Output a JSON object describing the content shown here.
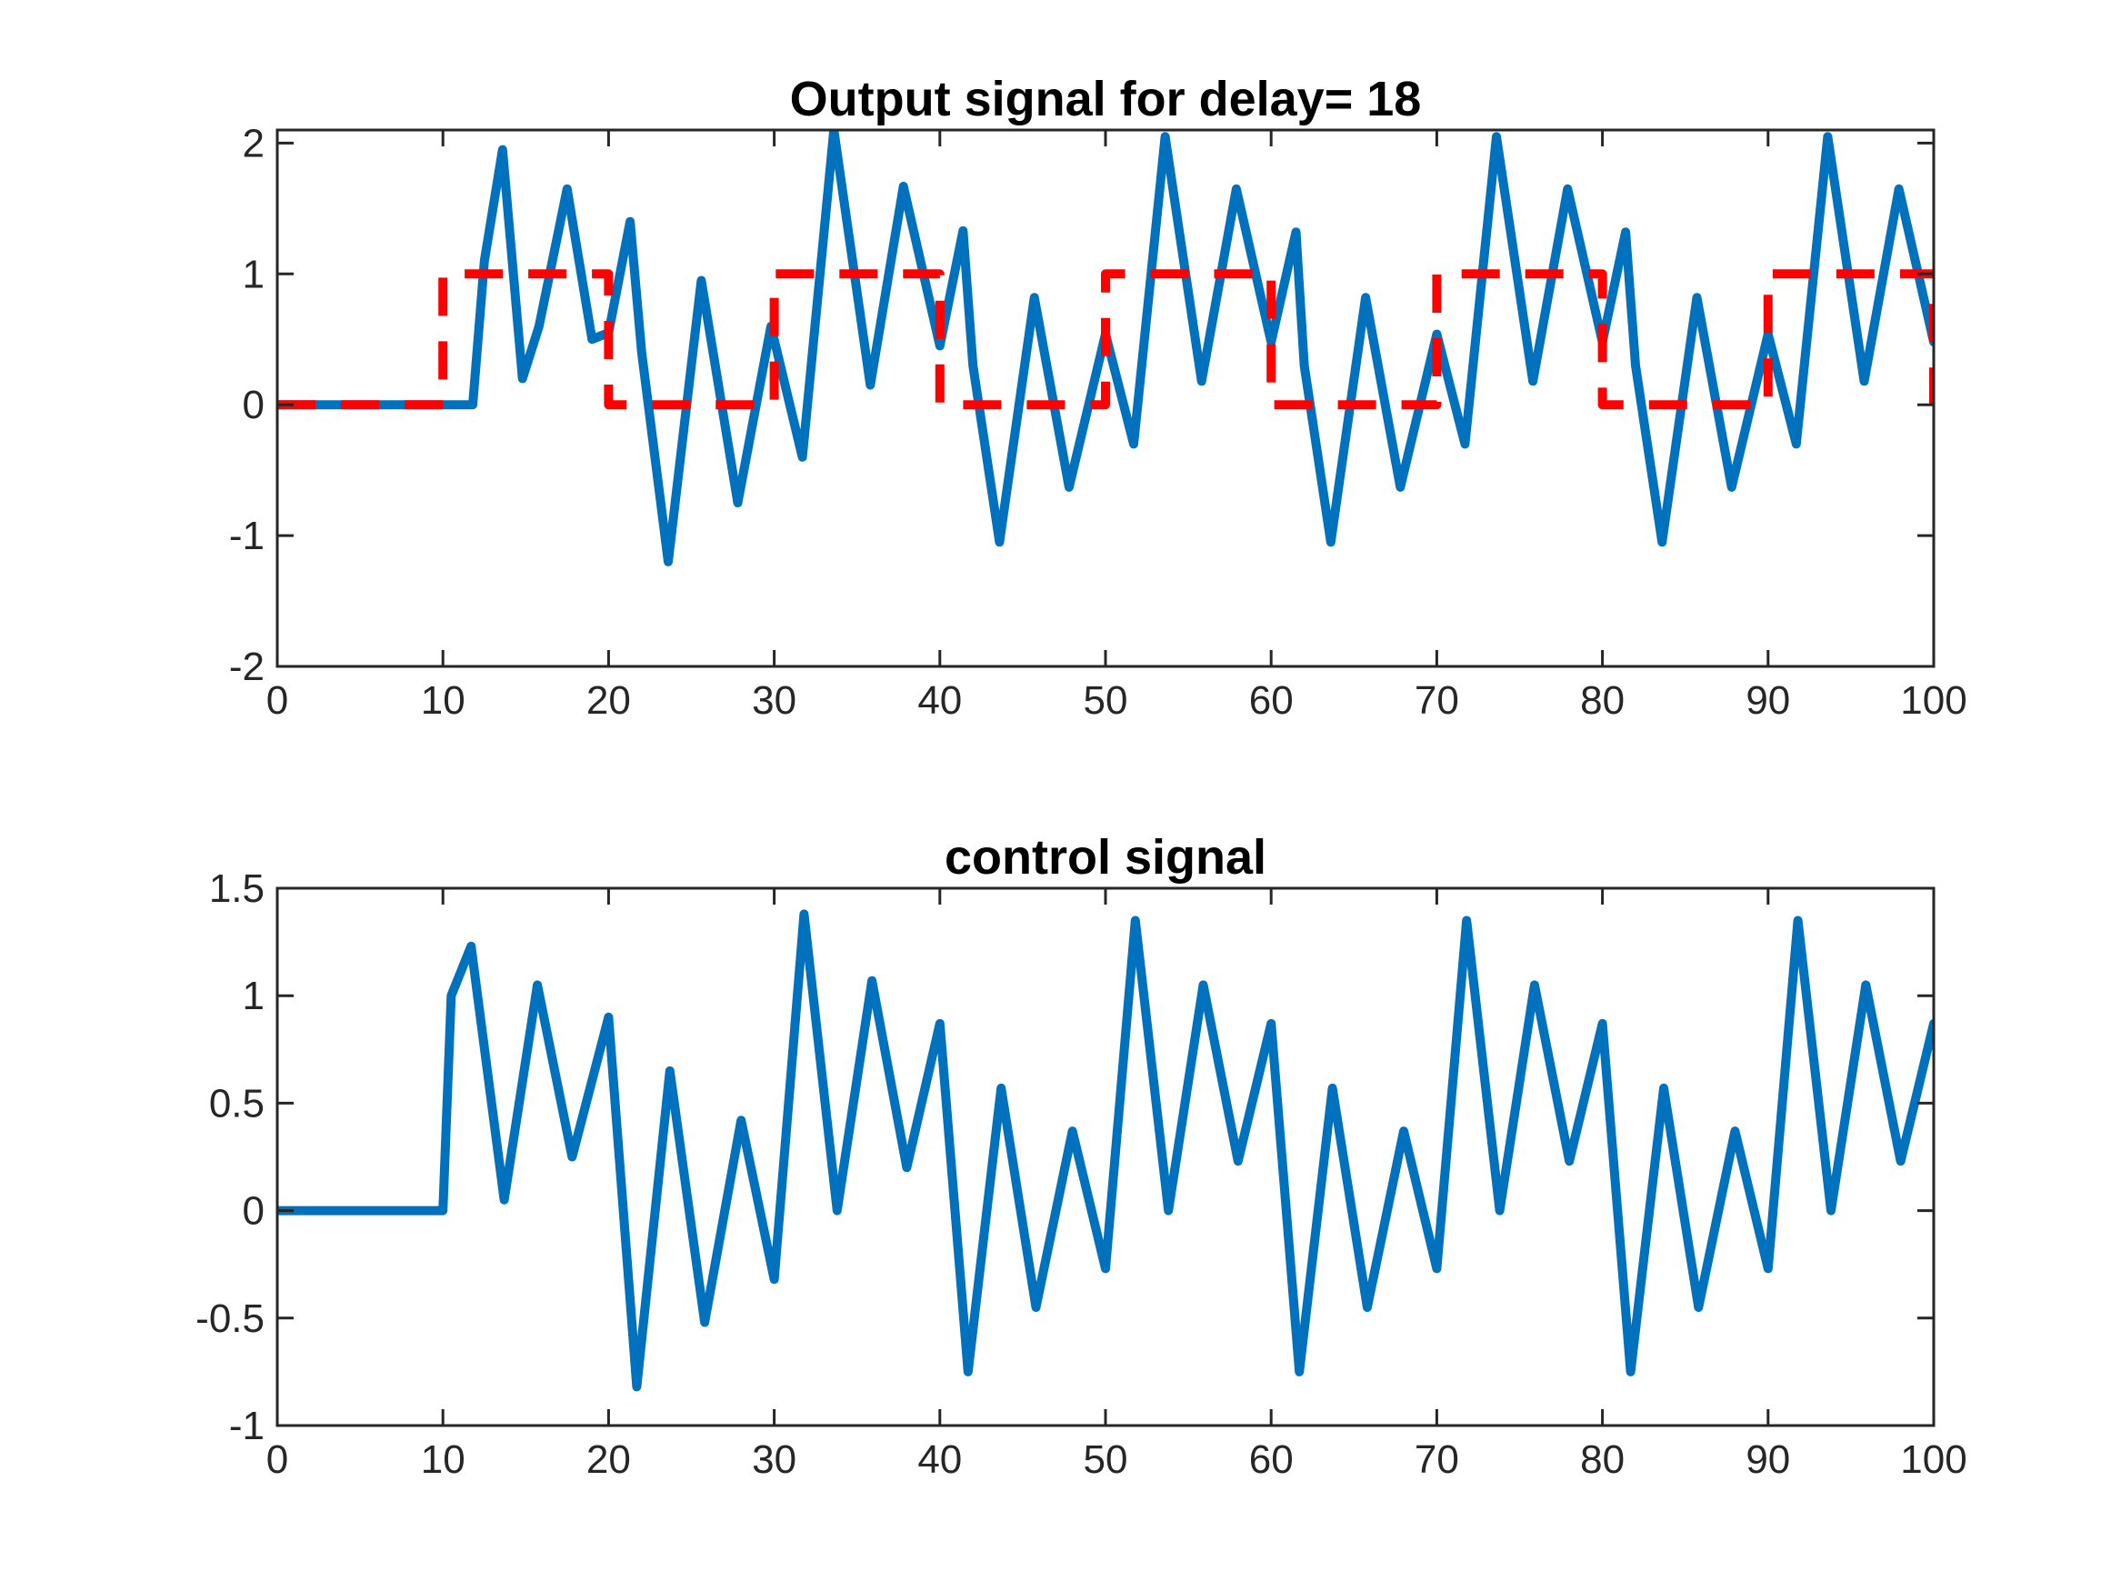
{
  "colors": {
    "output": "#0072BD",
    "reference": "#FF0000",
    "axis": "#262626"
  },
  "chart_data": [
    {
      "type": "line",
      "title": "Output signal for delay= 18",
      "xlabel": "",
      "ylabel": "",
      "xlim": [
        0,
        100
      ],
      "ylim": [
        -2,
        2.1
      ],
      "xticks": [
        0,
        10,
        20,
        30,
        40,
        50,
        60,
        70,
        80,
        90,
        100
      ],
      "yticks": [
        -2,
        -1,
        0,
        1,
        2
      ],
      "xtick_labels": [
        "0",
        "10",
        "20",
        "30",
        "40",
        "50",
        "60",
        "70",
        "80",
        "90",
        "100"
      ],
      "ytick_labels": [
        "-2",
        "-1",
        "0",
        "1",
        "2"
      ],
      "grid": false,
      "legend": null,
      "series": [
        {
          "style": "solid",
          "color": "#0072BD",
          "x": [
            0,
            11.8,
            12.5,
            13.6,
            14.8,
            15.8,
            17.5,
            19.0,
            20.0,
            21.3,
            22.0,
            23.6,
            25.6,
            27.8,
            29.8,
            31.7,
            33.6,
            35.8,
            37.8,
            40.0,
            41.4,
            42.0,
            43.6,
            45.7,
            47.8,
            50.0,
            51.7,
            53.6,
            55.8,
            57.9,
            60.0,
            61.5,
            62.0,
            63.6,
            65.7,
            67.8,
            70.0,
            71.7,
            73.6,
            75.8,
            77.9,
            80.0,
            81.4,
            82.0,
            83.6,
            85.7,
            87.8,
            90.0,
            91.7,
            93.6,
            95.8,
            97.9,
            100
          ],
          "y": [
            0,
            0,
            1.1,
            1.95,
            0.2,
            0.6,
            1.65,
            0.5,
            0.55,
            1.4,
            0.4,
            -1.2,
            0.95,
            -0.75,
            0.6,
            -0.4,
            2.1,
            0.15,
            1.67,
            0.45,
            1.33,
            0.3,
            -1.05,
            0.82,
            -0.63,
            0.54,
            -0.3,
            2.05,
            0.18,
            1.65,
            0.48,
            1.32,
            0.3,
            -1.05,
            0.82,
            -0.63,
            0.54,
            -0.3,
            2.05,
            0.18,
            1.65,
            0.48,
            1.32,
            0.3,
            -1.05,
            0.82,
            -0.63,
            0.54,
            -0.3,
            2.05,
            0.18,
            1.65,
            0.48
          ]
        },
        {
          "style": "dashed",
          "color": "#FF0000",
          "x": [
            0,
            10,
            10,
            20,
            20,
            30,
            30,
            40,
            40,
            50,
            50,
            60,
            60,
            70,
            70,
            80,
            80,
            90,
            90,
            100,
            100
          ],
          "y": [
            0,
            0,
            1,
            1,
            0,
            0,
            1,
            1,
            0,
            0,
            1,
            1,
            0,
            0,
            1,
            1,
            0,
            0,
            1,
            1,
            0
          ]
        }
      ]
    },
    {
      "type": "line",
      "title": "control signal",
      "xlabel": "",
      "ylabel": "",
      "xlim": [
        0,
        100
      ],
      "ylim": [
        -1,
        1.5
      ],
      "xticks": [
        0,
        10,
        20,
        30,
        40,
        50,
        60,
        70,
        80,
        90,
        100
      ],
      "yticks": [
        -1,
        -0.5,
        0,
        0.5,
        1,
        1.5
      ],
      "xtick_labels": [
        "0",
        "10",
        "20",
        "30",
        "40",
        "50",
        "60",
        "70",
        "80",
        "90",
        "100"
      ],
      "ytick_labels": [
        "-1",
        "-0.5",
        "0",
        "0.5",
        "1",
        "1.5"
      ],
      "grid": false,
      "legend": null,
      "series": [
        {
          "style": "solid",
          "color": "#0072BD",
          "x": [
            0,
            10.0,
            10.5,
            11.7,
            13.7,
            15.7,
            17.8,
            20.0,
            21.7,
            23.7,
            25.8,
            28.0,
            30.0,
            31.8,
            33.8,
            35.9,
            38.0,
            40.0,
            41.7,
            43.7,
            45.8,
            48.0,
            50.0,
            51.8,
            53.8,
            55.9,
            58.0,
            60.0,
            61.7,
            63.7,
            65.8,
            68.0,
            70.0,
            71.8,
            73.8,
            75.9,
            78.0,
            80.0,
            81.7,
            83.7,
            85.8,
            88.0,
            90.0,
            91.8,
            93.8,
            95.9,
            98.0,
            100
          ],
          "y": [
            0,
            0,
            1.0,
            1.23,
            0.05,
            1.05,
            0.25,
            0.9,
            -0.82,
            0.65,
            -0.52,
            0.42,
            -0.32,
            1.38,
            0.0,
            1.07,
            0.2,
            0.87,
            -0.75,
            0.57,
            -0.45,
            0.37,
            -0.27,
            1.35,
            0.0,
            1.05,
            0.23,
            0.87,
            -0.75,
            0.57,
            -0.45,
            0.37,
            -0.27,
            1.35,
            0.0,
            1.05,
            0.23,
            0.87,
            -0.75,
            0.57,
            -0.45,
            0.37,
            -0.27,
            1.35,
            0.0,
            1.05,
            0.23,
            0.87
          ]
        }
      ]
    }
  ]
}
